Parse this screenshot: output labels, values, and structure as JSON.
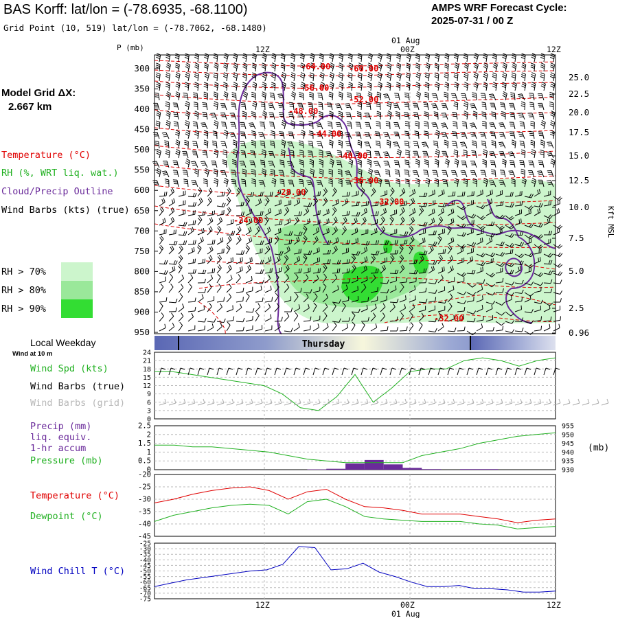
{
  "header": {
    "title": "BAS Korff:  lat/lon = (-78.6935, -68.1100)",
    "grid_point": "Grid Point (10, 519) lat/lon = (-78.7062, -68.1480)",
    "forecast_line1": "AMPS WRF Forecast Cycle:",
    "forecast_line2": "2025-07-31 / 00  Z"
  },
  "sidebar": {
    "model_grid_1": "Model Grid ΔX:",
    "model_grid_2": "2.667 km",
    "legend_temperature": "Temperature (°C)",
    "legend_rh": "RH (%, WRT liq. wat.)",
    "legend_cloud": "Cloud/Precip Outline",
    "legend_wind": "Wind Barbs (kts) (true)",
    "rh70": "RH > 70%",
    "rh80": "RH > 80%",
    "rh90": "RH > 90%",
    "local_weekday": "Local Weekday",
    "wind_10m": "Wind at 10 m",
    "wind_spd": "Wind Spd (kts)",
    "wind_barbs_true": "Wind Barbs (true)",
    "wind_barbs_grid": "Wind Barbs (grid)",
    "precip1": "Precip (mm)",
    "precip2": "liq. equiv.",
    "precip3": "1-hr accum",
    "pressure": "Pressure (mb)",
    "temperature": "Temperature (°C)",
    "dewpoint": "Dewpoint (°C)",
    "windchill": "Wind Chill T (°C)"
  },
  "colors": {
    "temp": "#e00000",
    "rh": "#20b020",
    "cloud": "#6a2a9a",
    "pressure": "#20b020",
    "precip": "#6a2a9a",
    "windchill": "#0000c0",
    "rh70": "#ccf5cc",
    "rh80": "#9ae89a",
    "rh90": "#33dd33"
  },
  "time_axis": {
    "top_ticks": [
      "12Z",
      "00Z",
      "12Z"
    ],
    "top_date": "01 Aug",
    "bottom_ticks": [
      "12Z",
      "00Z",
      "12Z"
    ],
    "bottom_date": "01 Aug",
    "day_label": "Thursday"
  },
  "chart_data": [
    {
      "type": "area",
      "name": "cross-section",
      "ylabel_left": "P (mb)",
      "ylabel_right": "Kft MSL",
      "pressure_ticks": [
        "300",
        "350",
        "400",
        "450",
        "500",
        "550",
        "600",
        "650",
        "700",
        "750",
        "800",
        "850",
        "900",
        "950"
      ],
      "height_ticks": [
        "25.0",
        "22.5",
        "20.0",
        "17.5",
        "15.0",
        "12.5",
        "10.0",
        "7.5",
        "5.0",
        "2.5",
        "0.96"
      ],
      "temperature_labels": [
        "-64.00",
        "-60.00",
        "-56.00",
        "-52.00",
        "-48.00",
        "-44.00",
        "-40.00",
        "-36.00",
        "-32.00",
        "-28.00",
        "-24.00",
        "-32.00"
      ]
    },
    {
      "type": "line",
      "name": "wind speed",
      "ylim": [
        0,
        24
      ],
      "yticks": [
        "24",
        "21",
        "18",
        "15",
        "12",
        "9",
        "6",
        "3",
        "0"
      ],
      "values": [
        17,
        17,
        16,
        15,
        14,
        13,
        12,
        9,
        4,
        3,
        8,
        16,
        6,
        11,
        17,
        18,
        18,
        21,
        22,
        21,
        19,
        21,
        22
      ]
    },
    {
      "type": "bar",
      "name": "precip and pressure",
      "ylim": [
        0,
        2.5
      ],
      "yticks_left": [
        "2.5",
        "2",
        "1.5",
        "1",
        "0.5",
        "0"
      ],
      "yticks_right": [
        "955",
        "950",
        "945",
        "940",
        "935",
        "930"
      ],
      "pressure_values": [
        944,
        944,
        943,
        943,
        942,
        941,
        940,
        938,
        936,
        935,
        934,
        934,
        934,
        934,
        938,
        940,
        942,
        945,
        947,
        949,
        950,
        951
      ],
      "precip_values": [
        0,
        0,
        0,
        0,
        0,
        0,
        0,
        0,
        0.02,
        0.05,
        0.35,
        0.55,
        0.3,
        0.1,
        0.03,
        0,
        0.03,
        0.03,
        0,
        0,
        0
      ]
    },
    {
      "type": "line",
      "name": "temperature and dewpoint",
      "ylim": [
        -45,
        -20
      ],
      "yticks": [
        "-20",
        "-25",
        "-30",
        "-35",
        "-40",
        "-45"
      ],
      "series": [
        {
          "name": "Temperature",
          "values": [
            -31.5,
            -30,
            -28,
            -26.5,
            -25.5,
            -25,
            -26.5,
            -30,
            -27,
            -26,
            -30,
            -33,
            -33.5,
            -34.5,
            -36,
            -36,
            -36,
            -37,
            -38,
            -39.5,
            -38.5,
            -38
          ]
        },
        {
          "name": "Dewpoint",
          "values": [
            -39,
            -36.5,
            -35,
            -33.5,
            -32.5,
            -32,
            -32.5,
            -36,
            -31,
            -30,
            -33,
            -37,
            -38,
            -38.5,
            -39,
            -39,
            -39,
            -40,
            -40.5,
            -42,
            -41.5,
            -41
          ]
        }
      ]
    },
    {
      "type": "line",
      "name": "wind chill",
      "ylim": [
        -75,
        -25
      ],
      "yticks": [
        "-25",
        "-30",
        "-35",
        "-40",
        "-45",
        "-50",
        "-55",
        "-60",
        "-65",
        "-70",
        "-75"
      ],
      "values": [
        -64,
        -61,
        -58,
        -56,
        -54,
        -52,
        -50,
        -49,
        -44,
        -28,
        -29,
        -49,
        -48,
        -43,
        -51,
        -55,
        -60,
        -64,
        -64,
        -63,
        -66,
        -66,
        -67,
        -69,
        -69,
        -68
      ]
    }
  ]
}
